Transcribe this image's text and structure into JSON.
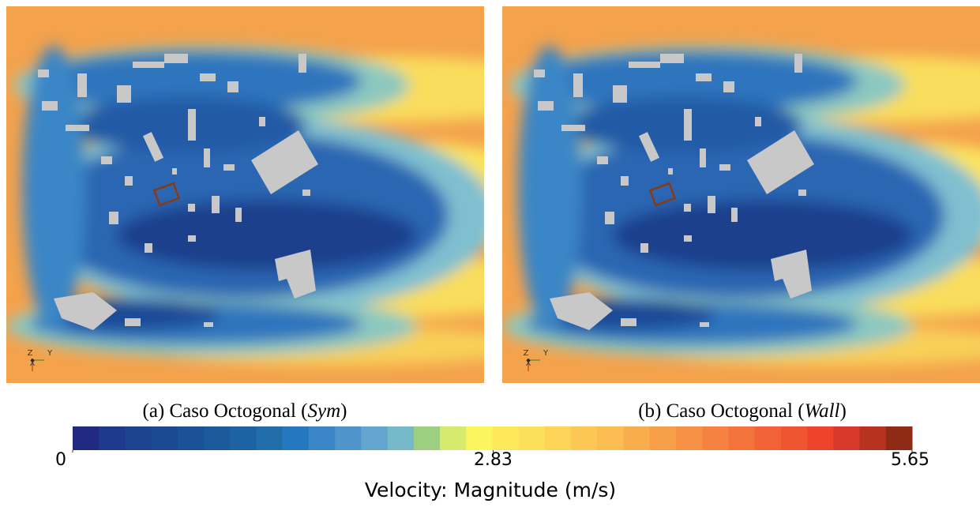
{
  "panels": [
    {
      "caption": [
        "(a) Caso Octogonal (",
        "Sym",
        ")"
      ],
      "axes": [
        "Z",
        "Y",
        "X"
      ]
    },
    {
      "caption": [
        "(b) Caso Octogonal (",
        "Wall",
        ")"
      ],
      "axes": [
        "Z",
        "Y",
        "X"
      ]
    }
  ],
  "colorbar": {
    "ticks": [
      0,
      2.83,
      5.65
    ],
    "label": "Velocity: Magnitude (m/s)",
    "colors": [
      "#1f2a80",
      "#1e3a8c",
      "#1c448f",
      "#1b4a93",
      "#1b5297",
      "#1c5a9c",
      "#1d63a3",
      "#206daa",
      "#2578c0",
      "#3a86c6",
      "#4f95cc",
      "#64a5d0",
      "#76b9c8",
      "#9ccf7f",
      "#d6eb6e",
      "#fbf55e",
      "#fde85b",
      "#fde05a",
      "#fdd457",
      "#fcc755",
      "#fbbc52",
      "#f9ae4e",
      "#f8a049",
      "#f79145",
      "#f68241",
      "#f4733c",
      "#f26437",
      "#f05532",
      "#ee442d",
      "#d9392a",
      "#b83220",
      "#8e2a16"
    ]
  }
}
